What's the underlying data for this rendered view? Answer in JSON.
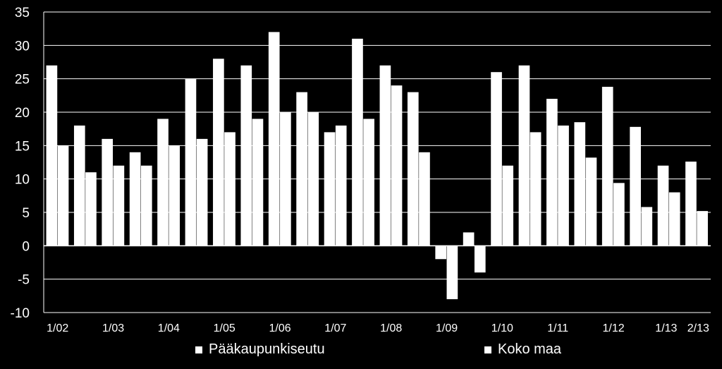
{
  "chart_data": {
    "type": "bar",
    "title": "",
    "xlabel": "",
    "ylabel": "",
    "ylim": [
      -10,
      35
    ],
    "yticks": [
      -10,
      -5,
      0,
      5,
      10,
      15,
      20,
      25,
      30,
      35
    ],
    "grid": true,
    "legend_placement": "bottom",
    "colors": {
      "background": "#000000",
      "bars": "#ffffff",
      "grid": "#ffffff",
      "text": "#ffffff"
    },
    "x_labels": [
      {
        "label": "1/02",
        "index": 0
      },
      {
        "label": "1/03",
        "index": 2
      },
      {
        "label": "1/04",
        "index": 4
      },
      {
        "label": "1/05",
        "index": 6
      },
      {
        "label": "1/06",
        "index": 8
      },
      {
        "label": "1/07",
        "index": 10
      },
      {
        "label": "1/08",
        "index": 12
      },
      {
        "label": "1/09",
        "index": 14
      },
      {
        "label": "1/10",
        "index": 16
      },
      {
        "label": "1/11",
        "index": 18
      },
      {
        "label": "1/12",
        "index": 20
      },
      {
        "label": "1/13",
        "index": 22
      },
      {
        "label": "2/13",
        "index": 23
      }
    ],
    "series": [
      {
        "name": "Pääkaupunkiseutu",
        "values": [
          27,
          18,
          16,
          14,
          19,
          25,
          28,
          27,
          32,
          23,
          17,
          31,
          27,
          23,
          -2,
          2,
          26,
          27,
          22,
          18.5,
          23.8,
          17.8,
          12,
          12.6
        ]
      },
      {
        "name": "Koko maa",
        "values": [
          15,
          11,
          12,
          12,
          15,
          16,
          17,
          19,
          20,
          20,
          18,
          19,
          24,
          14,
          -8,
          -4,
          12,
          17,
          18,
          13.2,
          9.4,
          5.8,
          8,
          5.2
        ]
      }
    ]
  }
}
